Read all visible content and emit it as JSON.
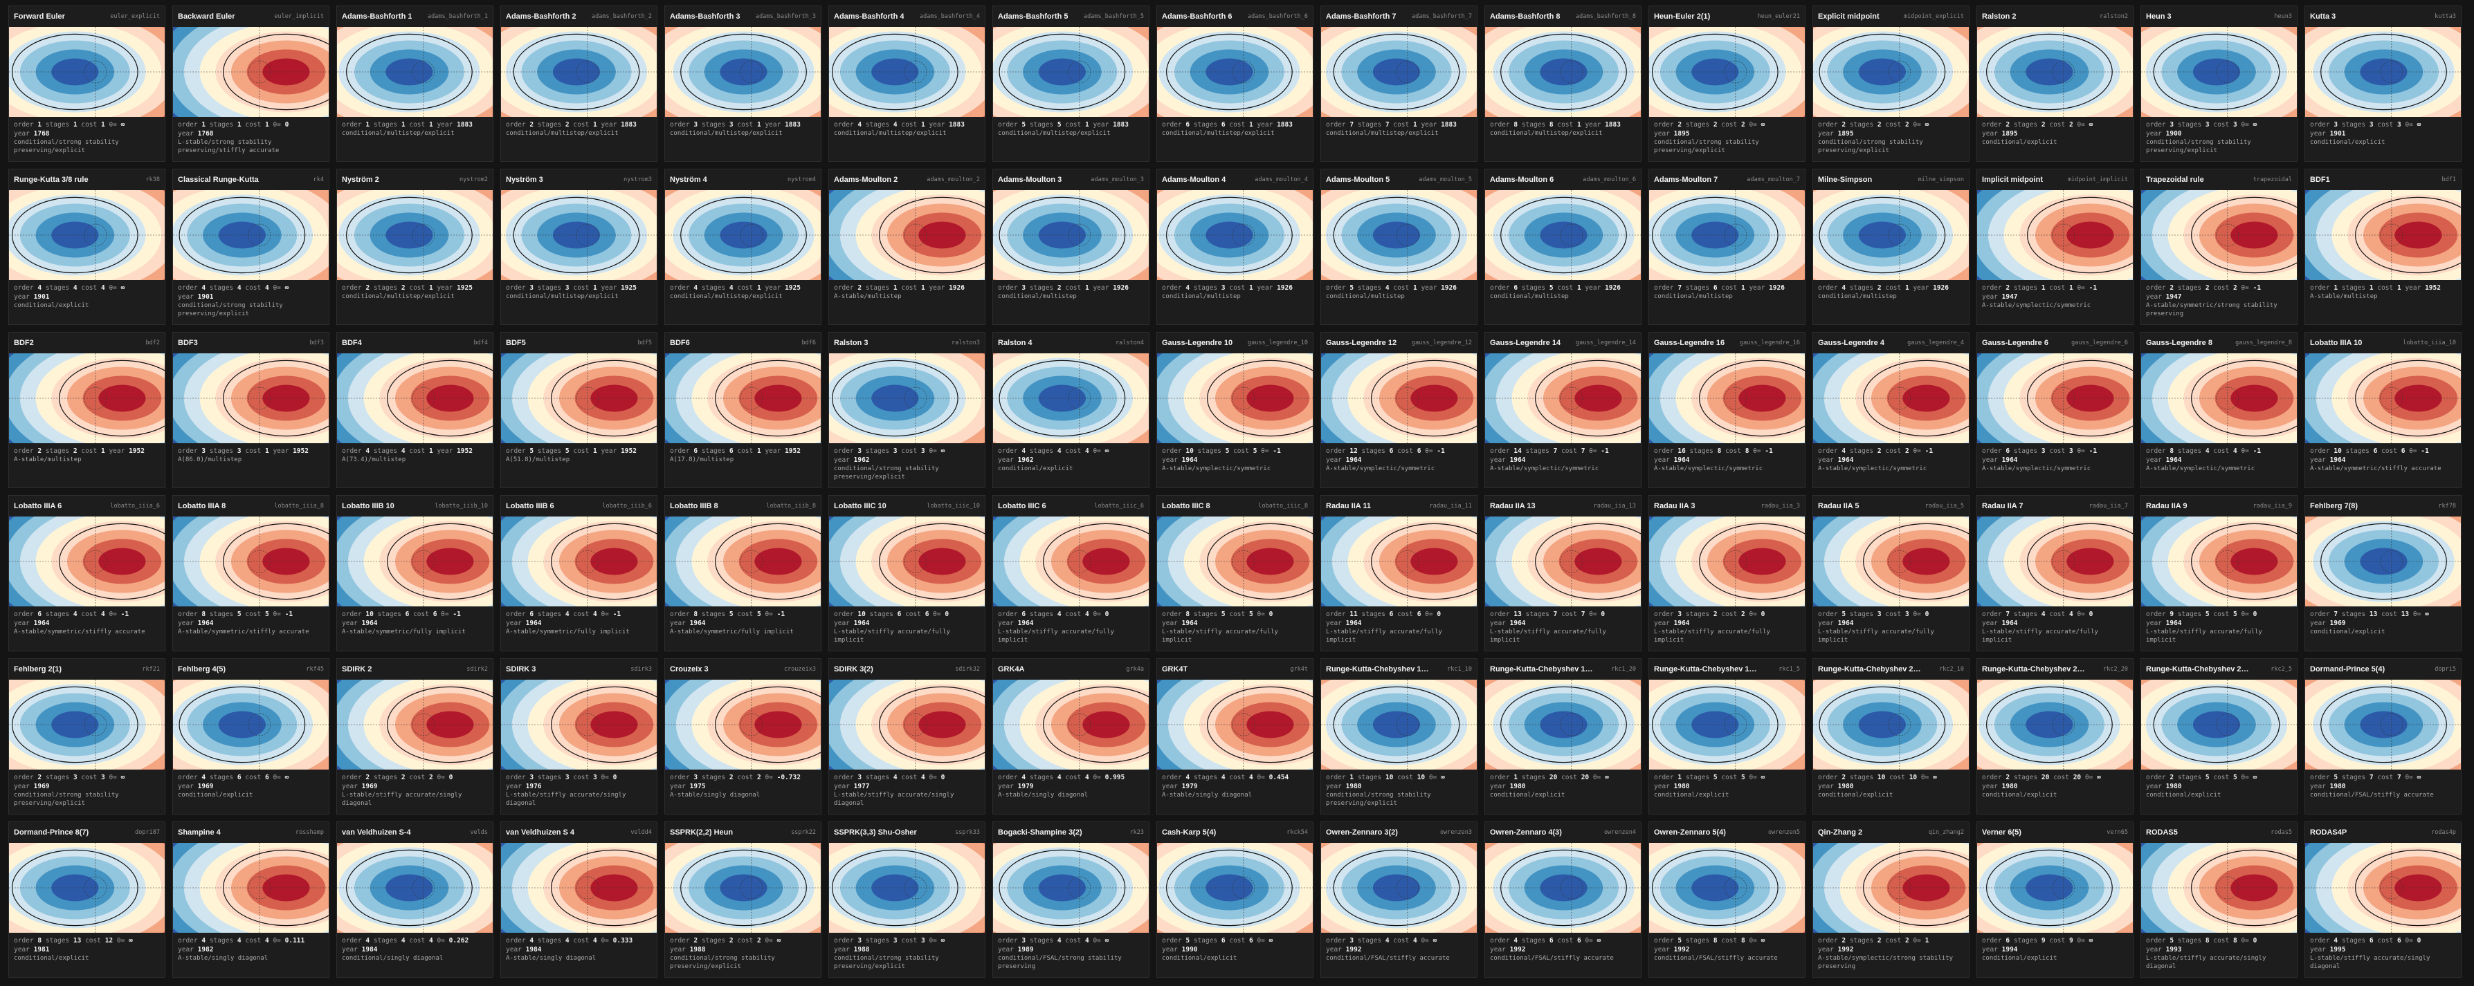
{
  "labels": {
    "order": "order",
    "stages": "stages",
    "cost": "cost",
    "theta": "θ=",
    "year": "year"
  },
  "cards": [
    {
      "title": "Forward Euler",
      "id": "euler_explicit",
      "order": 1,
      "stages": 1,
      "cost": 1,
      "theta": "∞",
      "year": 1768,
      "tags": "conditional/strong stability preserving/explicit"
    },
    {
      "title": "Backward Euler",
      "id": "euler_implicit",
      "order": 1,
      "stages": 1,
      "cost": 1,
      "theta": 0,
      "year": 1768,
      "tags": "L-stable/strong stability preserving/stiffly accurate"
    },
    {
      "title": "Adams-Bashforth 1",
      "id": "adams_bashforth_1",
      "order": 1,
      "stages": 1,
      "cost": 1,
      "year": 1883,
      "tags": "conditional/multistep/explicit"
    },
    {
      "title": "Adams-Bashforth 2",
      "id": "adams_bashforth_2",
      "order": 2,
      "stages": 2,
      "cost": 1,
      "year": 1883,
      "tags": "conditional/multistep/explicit"
    },
    {
      "title": "Adams-Bashforth 3",
      "id": "adams_bashforth_3",
      "order": 3,
      "stages": 3,
      "cost": 1,
      "year": 1883,
      "tags": "conditional/multistep/explicit"
    },
    {
      "title": "Adams-Bashforth 4",
      "id": "adams_bashforth_4",
      "order": 4,
      "stages": 4,
      "cost": 1,
      "year": 1883,
      "tags": "conditional/multistep/explicit"
    },
    {
      "title": "Adams-Bashforth 5",
      "id": "adams_bashforth_5",
      "order": 5,
      "stages": 5,
      "cost": 1,
      "year": 1883,
      "tags": "conditional/multistep/explicit"
    },
    {
      "title": "Adams-Bashforth 6",
      "id": "adams_bashforth_6",
      "order": 6,
      "stages": 6,
      "cost": 1,
      "year": 1883,
      "tags": "conditional/multistep/explicit"
    },
    {
      "title": "Adams-Bashforth 7",
      "id": "adams_bashforth_7",
      "order": 7,
      "stages": 7,
      "cost": 1,
      "year": 1883,
      "tags": "conditional/multistep/explicit"
    },
    {
      "title": "Adams-Bashforth 8",
      "id": "adams_bashforth_8",
      "order": 8,
      "stages": 8,
      "cost": 1,
      "year": 1883,
      "tags": "conditional/multistep/explicit"
    },
    {
      "title": "Heun-Euler 2(1)",
      "id": "heun_euler21",
      "order": 2,
      "stages": 2,
      "cost": 2,
      "theta": "∞",
      "year": 1895,
      "tags": "conditional/strong stability preserving/explicit"
    },
    {
      "title": "Explicit midpoint",
      "id": "midpoint_explicit",
      "order": 2,
      "stages": 2,
      "cost": 2,
      "theta": "∞",
      "year": 1895,
      "tags": "conditional/strong stability preserving/explicit"
    },
    {
      "title": "Ralston 2",
      "id": "ralston2",
      "order": 2,
      "stages": 2,
      "cost": 2,
      "theta": "∞",
      "year": 1895,
      "tags": "conditional/explicit"
    },
    {
      "title": "Heun 3",
      "id": "heun3",
      "order": 3,
      "stages": 3,
      "cost": 3,
      "theta": "∞",
      "year": 1900,
      "tags": "conditional/strong stability preserving/explicit"
    },
    {
      "title": "Kutta 3",
      "id": "kutta3",
      "order": 3,
      "stages": 3,
      "cost": 3,
      "theta": "∞",
      "year": 1901,
      "tags": "conditional/explicit"
    },
    {
      "title": "Runge-Kutta 3/8 rule",
      "id": "rk38",
      "order": 4,
      "stages": 4,
      "cost": 4,
      "theta": "∞",
      "year": 1901,
      "tags": "conditional/explicit"
    },
    {
      "title": "Classical Runge-Kutta",
      "id": "rk4",
      "order": 4,
      "stages": 4,
      "cost": 4,
      "theta": "∞",
      "year": 1901,
      "tags": "conditional/strong stability preserving/explicit"
    },
    {
      "title": "Nyström 2",
      "id": "nystrom2",
      "order": 2,
      "stages": 2,
      "cost": 1,
      "year": 1925,
      "tags": "conditional/multistep/explicit"
    },
    {
      "title": "Nyström 3",
      "id": "nystrom3",
      "order": 3,
      "stages": 3,
      "cost": 1,
      "year": 1925,
      "tags": "conditional/multistep/explicit"
    },
    {
      "title": "Nyström 4",
      "id": "nystrom4",
      "order": 4,
      "stages": 4,
      "cost": 1,
      "year": 1925,
      "tags": "conditional/multistep/explicit"
    },
    {
      "title": "Adams-Moulton 2",
      "id": "adams_moulton_2",
      "order": 2,
      "stages": 1,
      "cost": 1,
      "year": 1926,
      "tags": "A-stable/multistep"
    },
    {
      "title": "Adams-Moulton 3",
      "id": "adams_moulton_3",
      "order": 3,
      "stages": 2,
      "cost": 1,
      "year": 1926,
      "tags": "conditional/multistep"
    },
    {
      "title": "Adams-Moulton 4",
      "id": "adams_moulton_4",
      "order": 4,
      "stages": 3,
      "cost": 1,
      "year": 1926,
      "tags": "conditional/multistep"
    },
    {
      "title": "Adams-Moulton 5",
      "id": "adams_moulton_5",
      "order": 5,
      "stages": 4,
      "cost": 1,
      "year": 1926,
      "tags": "conditional/multistep"
    },
    {
      "title": "Adams-Moulton 6",
      "id": "adams_moulton_6",
      "order": 6,
      "stages": 5,
      "cost": 1,
      "year": 1926,
      "tags": "conditional/multistep"
    },
    {
      "title": "Adams-Moulton 7",
      "id": "adams_moulton_7",
      "order": 7,
      "stages": 6,
      "cost": 1,
      "year": 1926,
      "tags": "conditional/multistep"
    },
    {
      "title": "Milne-Simpson",
      "id": "milne_simpson",
      "order": 4,
      "stages": 2,
      "cost": 1,
      "year": 1926,
      "tags": "conditional/multistep"
    },
    {
      "title": "Implicit midpoint",
      "id": "midpoint_implicit",
      "order": 2,
      "stages": 1,
      "cost": 1,
      "theta": -1,
      "year": 1947,
      "tags": "A-stable/symplectic/symmetric"
    },
    {
      "title": "Trapezoidal rule",
      "id": "trapezoidal",
      "order": 2,
      "stages": 2,
      "cost": 2,
      "theta": -1,
      "year": 1947,
      "tags": "A-stable/symmetric/strong stability preserving"
    },
    {
      "title": "BDF1",
      "id": "bdf1",
      "order": 1,
      "stages": 1,
      "cost": 1,
      "year": 1952,
      "tags": "A-stable/multistep"
    },
    {
      "title": "BDF2",
      "id": "bdf2",
      "order": 2,
      "stages": 2,
      "cost": 1,
      "year": 1952,
      "tags": "A-stable/multistep"
    },
    {
      "title": "BDF3",
      "id": "bdf3",
      "order": 3,
      "stages": 3,
      "cost": 1,
      "year": 1952,
      "tags": "A(86.0)/multistep"
    },
    {
      "title": "BDF4",
      "id": "bdf4",
      "order": 4,
      "stages": 4,
      "cost": 1,
      "year": 1952,
      "tags": "A(73.4)/multistep"
    },
    {
      "title": "BDF5",
      "id": "bdf5",
      "order": 5,
      "stages": 5,
      "cost": 1,
      "year": 1952,
      "tags": "A(51.8)/multistep"
    },
    {
      "title": "BDF6",
      "id": "bdf6",
      "order": 6,
      "stages": 6,
      "cost": 1,
      "year": 1952,
      "tags": "A(17.8)/multistep"
    },
    {
      "title": "Ralston 3",
      "id": "ralston3",
      "order": 3,
      "stages": 3,
      "cost": 3,
      "theta": "∞",
      "year": 1962,
      "tags": "conditional/strong stability preserving/explicit"
    },
    {
      "title": "Ralston 4",
      "id": "ralston4",
      "order": 4,
      "stages": 4,
      "cost": 4,
      "theta": "∞",
      "year": 1962,
      "tags": "conditional/explicit"
    },
    {
      "title": "Gauss-Legendre 10",
      "id": "gauss_legendre_10",
      "order": 10,
      "stages": 5,
      "cost": 5,
      "theta": -1,
      "year": 1964,
      "tags": "A-stable/symplectic/symmetric"
    },
    {
      "title": "Gauss-Legendre 12",
      "id": "gauss_legendre_12",
      "order": 12,
      "stages": 6,
      "cost": 6,
      "theta": -1,
      "year": 1964,
      "tags": "A-stable/symplectic/symmetric"
    },
    {
      "title": "Gauss-Legendre 14",
      "id": "gauss_legendre_14",
      "order": 14,
      "stages": 7,
      "cost": 7,
      "theta": -1,
      "year": 1964,
      "tags": "A-stable/symplectic/symmetric"
    },
    {
      "title": "Gauss-Legendre 16",
      "id": "gauss_legendre_16",
      "order": 16,
      "stages": 8,
      "cost": 8,
      "theta": -1,
      "year": 1964,
      "tags": "A-stable/symplectic/symmetric"
    },
    {
      "title": "Gauss-Legendre 4",
      "id": "gauss_legendre_4",
      "order": 4,
      "stages": 2,
      "cost": 2,
      "theta": -1,
      "year": 1964,
      "tags": "A-stable/symplectic/symmetric"
    },
    {
      "title": "Gauss-Legendre 6",
      "id": "gauss_legendre_6",
      "order": 6,
      "stages": 3,
      "cost": 3,
      "theta": -1,
      "year": 1964,
      "tags": "A-stable/symplectic/symmetric"
    },
    {
      "title": "Gauss-Legendre 8",
      "id": "gauss_legendre_8",
      "order": 8,
      "stages": 4,
      "cost": 4,
      "theta": -1,
      "year": 1964,
      "tags": "A-stable/symplectic/symmetric"
    },
    {
      "title": "Lobatto IIIA 10",
      "id": "lobatto_iiia_10",
      "order": 10,
      "stages": 6,
      "cost": 6,
      "theta": -1,
      "year": 1964,
      "tags": "A-stable/symmetric/stiffly accurate"
    },
    {
      "title": "Lobatto IIIA 6",
      "id": "lobatto_iiia_6",
      "order": 6,
      "stages": 4,
      "cost": 4,
      "theta": -1,
      "year": 1964,
      "tags": "A-stable/symmetric/stiffly accurate"
    },
    {
      "title": "Lobatto IIIA 8",
      "id": "lobatto_iiia_8",
      "order": 8,
      "stages": 5,
      "cost": 5,
      "theta": -1,
      "year": 1964,
      "tags": "A-stable/symmetric/stiffly accurate"
    },
    {
      "title": "Lobatto IIIB 10",
      "id": "lobatto_iiib_10",
      "order": 10,
      "stages": 6,
      "cost": 6,
      "theta": -1,
      "year": 1964,
      "tags": "A-stable/symmetric/fully implicit"
    },
    {
      "title": "Lobatto IIIB 6",
      "id": "lobatto_iiib_6",
      "order": 6,
      "stages": 4,
      "cost": 4,
      "theta": -1,
      "year": 1964,
      "tags": "A-stable/symmetric/fully implicit"
    },
    {
      "title": "Lobatto IIIB 8",
      "id": "lobatto_iiib_8",
      "order": 8,
      "stages": 5,
      "cost": 5,
      "theta": -1,
      "year": 1964,
      "tags": "A-stable/symmetric/fully implicit"
    },
    {
      "title": "Lobatto IIIC 10",
      "id": "lobatto_iiic_10",
      "order": 10,
      "stages": 6,
      "cost": 6,
      "theta": 0,
      "year": 1964,
      "tags": "L-stable/stiffly accurate/fully implicit"
    },
    {
      "title": "Lobatto IIIC 6",
      "id": "lobatto_iiic_6",
      "order": 6,
      "stages": 4,
      "cost": 4,
      "theta": 0,
      "year": 1964,
      "tags": "L-stable/stiffly accurate/fully implicit"
    },
    {
      "title": "Lobatto IIIC 8",
      "id": "lobatto_iiic_8",
      "order": 8,
      "stages": 5,
      "cost": 5,
      "theta": 0,
      "year": 1964,
      "tags": "L-stable/stiffly accurate/fully implicit"
    },
    {
      "title": "Radau IIA 11",
      "id": "radau_iia_11",
      "order": 11,
      "stages": 6,
      "cost": 6,
      "theta": 0,
      "year": 1964,
      "tags": "L-stable/stiffly accurate/fully implicit"
    },
    {
      "title": "Radau IIA 13",
      "id": "radau_iia_13",
      "order": 13,
      "stages": 7,
      "cost": 7,
      "theta": 0,
      "year": 1964,
      "tags": "L-stable/stiffly accurate/fully implicit"
    },
    {
      "title": "Radau IIA 3",
      "id": "radau_iia_3",
      "order": 3,
      "stages": 2,
      "cost": 2,
      "theta": 0,
      "year": 1964,
      "tags": "L-stable/stiffly accurate/fully implicit"
    },
    {
      "title": "Radau IIA 5",
      "id": "radau_iia_5",
      "order": 5,
      "stages": 3,
      "cost": 3,
      "theta": 0,
      "year": 1964,
      "tags": "L-stable/stiffly accurate/fully implicit"
    },
    {
      "title": "Radau IIA 7",
      "id": "radau_iia_7",
      "order": 7,
      "stages": 4,
      "cost": 4,
      "theta": 0,
      "year": 1964,
      "tags": "L-stable/stiffly accurate/fully implicit"
    },
    {
      "title": "Radau IIA 9",
      "id": "radau_iia_9",
      "order": 9,
      "stages": 5,
      "cost": 5,
      "theta": 0,
      "year": 1964,
      "tags": "L-stable/stiffly accurate/fully implicit"
    },
    {
      "title": "Fehlberg 7(8)",
      "id": "rkf78",
      "order": 7,
      "stages": 13,
      "cost": 13,
      "theta": "∞",
      "year": 1969,
      "tags": "conditional/explicit"
    },
    {
      "title": "Fehlberg 2(1)",
      "id": "rkf21",
      "order": 2,
      "stages": 3,
      "cost": 3,
      "theta": "∞",
      "year": 1969,
      "tags": "conditional/strong stability preserving/explicit"
    },
    {
      "title": "Fehlberg 4(5)",
      "id": "rkf45",
      "order": 4,
      "stages": 6,
      "cost": 6,
      "theta": "∞",
      "year": 1969,
      "tags": "conditional/explicit"
    },
    {
      "title": "SDIRK 2",
      "id": "sdirk2",
      "order": 2,
      "stages": 2,
      "cost": 2,
      "theta": 0,
      "year": 1969,
      "tags": "L-stable/stiffly accurate/singly diagonal"
    },
    {
      "title": "SDIRK 3",
      "id": "sdirk3",
      "order": 3,
      "stages": 3,
      "cost": 3,
      "theta": 0,
      "year": 1976,
      "tags": "L-stable/stiffly accurate/singly diagonal"
    },
    {
      "title": "Crouzeix 3",
      "id": "crouzeix3",
      "order": 3,
      "stages": 2,
      "cost": 2,
      "theta": -0.732,
      "year": 1975,
      "tags": "A-stable/singly diagonal"
    },
    {
      "title": "SDIRK 3(2)",
      "id": "sdirk32",
      "order": 3,
      "stages": 4,
      "cost": 4,
      "theta": 0,
      "year": 1977,
      "tags": "L-stable/stiffly accurate/singly diagonal"
    },
    {
      "title": "GRK4A",
      "id": "grk4a",
      "order": 4,
      "stages": 4,
      "cost": 4,
      "theta": 0.995,
      "year": 1979,
      "tags": "A-stable/singly diagonal"
    },
    {
      "title": "GRK4T",
      "id": "grk4t",
      "order": 4,
      "stages": 4,
      "cost": 4,
      "theta": 0.454,
      "year": 1979,
      "tags": "A-stable/singly diagonal"
    },
    {
      "title": "Runge-Kutta-Chebyshev 1, 10 ...",
      "id": "rkc1_10",
      "order": 1,
      "stages": 10,
      "cost": 10,
      "theta": "∞",
      "year": 1980,
      "tags": "conditional/strong stability preserving/explicit"
    },
    {
      "title": "Runge-Kutta-Chebyshev 1, 20 ...",
      "id": "rkc1_20",
      "order": 1,
      "stages": 20,
      "cost": 20,
      "theta": "∞",
      "year": 1980,
      "tags": "conditional/explicit"
    },
    {
      "title": "Runge-Kutta-Chebyshev 1, 5 st...",
      "id": "rkc1_5",
      "order": 1,
      "stages": 5,
      "cost": 5,
      "theta": "∞",
      "year": 1980,
      "tags": "conditional/explicit"
    },
    {
      "title": "Runge-Kutta-Chebyshev 2, 10 ...",
      "id": "rkc2_10",
      "order": 2,
      "stages": 10,
      "cost": 10,
      "theta": "∞",
      "year": 1980,
      "tags": "conditional/explicit"
    },
    {
      "title": "Runge-Kutta-Chebyshev 2, 20 ...",
      "id": "rkc2_20",
      "order": 2,
      "stages": 20,
      "cost": 20,
      "theta": "∞",
      "year": 1980,
      "tags": "conditional/explicit"
    },
    {
      "title": "Runge-Kutta-Chebyshev 2, 5 st...",
      "id": "rkc2_5",
      "order": 2,
      "stages": 5,
      "cost": 5,
      "theta": "∞",
      "year": 1980,
      "tags": "conditional/explicit"
    },
    {
      "title": "Dormand-Prince 5(4)",
      "id": "dopri5",
      "order": 5,
      "stages": 7,
      "cost": 7,
      "theta": "∞",
      "year": 1980,
      "tags": "conditional/FSAL/stiffly accurate"
    },
    {
      "title": "Dormand-Prince 8(7)",
      "id": "dopri87",
      "order": 8,
      "stages": 13,
      "cost": 12,
      "theta": "∞",
      "year": 1981,
      "tags": "conditional/explicit"
    },
    {
      "title": "Shampine 4",
      "id": "rosshamp",
      "order": 4,
      "stages": 4,
      "cost": 4,
      "theta": 0.111,
      "year": 1982,
      "tags": "A-stable/singly diagonal"
    },
    {
      "title": "van Veldhuizen S-4",
      "id": "velds",
      "order": 4,
      "stages": 4,
      "cost": 4,
      "theta": 0.262,
      "year": 1984,
      "tags": "conditional/singly diagonal"
    },
    {
      "title": "van Veldhuizen S 4",
      "id": "veldd4",
      "order": 4,
      "stages": 4,
      "cost": 4,
      "theta": 0.333,
      "year": 1984,
      "tags": "A-stable/singly diagonal"
    },
    {
      "title": "SSPRK(2,2) Heun",
      "id": "ssprk22",
      "order": 2,
      "stages": 2,
      "cost": 2,
      "theta": "∞",
      "year": 1988,
      "tags": "conditional/strong stability preserving/explicit"
    },
    {
      "title": "SSPRK(3,3) Shu-Osher",
      "id": "ssprk33",
      "order": 3,
      "stages": 3,
      "cost": 3,
      "theta": "∞",
      "year": 1988,
      "tags": "conditional/strong stability preserving/explicit"
    },
    {
      "title": "Bogacki-Shampine 3(2)",
      "id": "rk23",
      "order": 3,
      "stages": 4,
      "cost": 4,
      "theta": "∞",
      "year": 1989,
      "tags": "conditional/FSAL/strong stability preserving"
    },
    {
      "title": "Cash-Karp 5(4)",
      "id": "rkck54",
      "order": 5,
      "stages": 6,
      "cost": 6,
      "theta": "∞",
      "year": 1990,
      "tags": "conditional/explicit"
    },
    {
      "title": "Owren-Zennaro 3(2)",
      "id": "owrenzen3",
      "order": 3,
      "stages": 4,
      "cost": 4,
      "theta": "∞",
      "year": 1992,
      "tags": "conditional/FSAL/stiffly accurate"
    },
    {
      "title": "Owren-Zennaro 4(3)",
      "id": "owrenzen4",
      "order": 4,
      "stages": 6,
      "cost": 6,
      "theta": "∞",
      "year": 1992,
      "tags": "conditional/FSAL/stiffly accurate"
    },
    {
      "title": "Owren-Zennaro 5(4)",
      "id": "owrenzen5",
      "order": 5,
      "stages": 8,
      "cost": 8,
      "theta": "∞",
      "year": 1992,
      "tags": "conditional/FSAL/stiffly accurate"
    },
    {
      "title": "Qin-Zhang 2",
      "id": "qin_zhang2",
      "order": 2,
      "stages": 2,
      "cost": 2,
      "theta": 1,
      "year": 1992,
      "tags": "A-stable/symplectic/strong stability preserving"
    },
    {
      "title": "Verner 6(5)",
      "id": "vern65",
      "order": 6,
      "stages": 9,
      "cost": 9,
      "theta": "∞",
      "year": 1994,
      "tags": "conditional/explicit"
    },
    {
      "title": "RODAS5",
      "id": "rodas5",
      "order": 5,
      "stages": 8,
      "cost": 8,
      "theta": 0,
      "year": 1993,
      "tags": "L-stable/stiffly accurate/singly diagonal"
    },
    {
      "title": "RODAS4P",
      "id": "rodas4p",
      "order": 4,
      "stages": 6,
      "cost": 6,
      "theta": 0,
      "year": 1995,
      "tags": "L-stable/stiffly accurate/singly diagonal"
    }
  ]
}
